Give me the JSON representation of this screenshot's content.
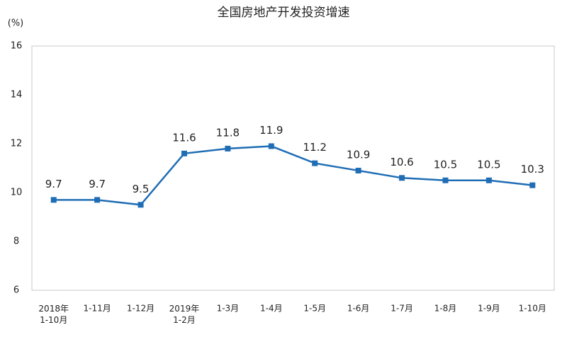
{
  "chart_data": {
    "type": "line",
    "title": "全国房地产开发投资增速",
    "y_label": "(%)",
    "categories": [
      "2018年\n1-10月",
      "1-11月",
      "1-12月",
      "2019年\n1-2月",
      "1-3月",
      "1-4月",
      "1-5月",
      "1-6月",
      "1-7月",
      "1-8月",
      "1-9月",
      "1-10月"
    ],
    "series": [
      {
        "name": "全国房地产开发投资增速",
        "color": "#1f6db5",
        "values": [
          9.7,
          9.7,
          9.5,
          11.6,
          11.8,
          11.9,
          11.2,
          10.9,
          10.6,
          10.5,
          10.5,
          10.3
        ]
      }
    ],
    "ylim": [
      6,
      16
    ],
    "yticks": [
      6,
      8,
      10,
      12,
      14,
      16
    ],
    "grid": false
  }
}
